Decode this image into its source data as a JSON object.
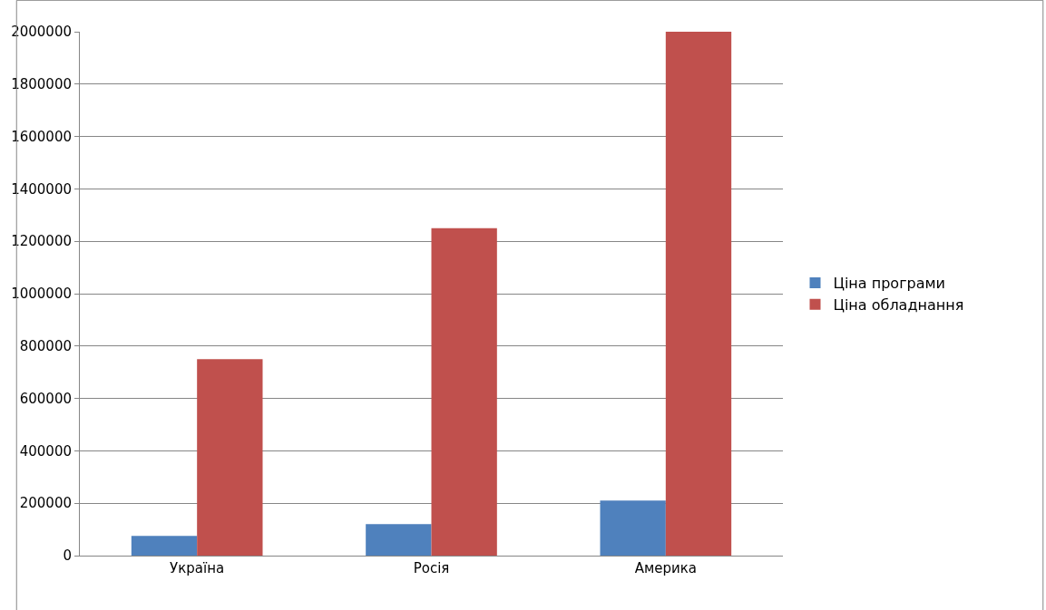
{
  "chart_data": {
    "type": "bar",
    "categories": [
      "Україна",
      "Росія",
      "Америка"
    ],
    "series": [
      {
        "name": "Ціна програми",
        "color": "#4f81bd",
        "values": [
          75000,
          120000,
          210000
        ]
      },
      {
        "name": "Ціна обладнання",
        "color": "#c0504d",
        "values": [
          750000,
          1250000,
          2000000
        ]
      }
    ],
    "ylim": [
      0,
      2000000
    ],
    "yticks": [
      0,
      200000,
      400000,
      600000,
      800000,
      1000000,
      1200000,
      1400000,
      1600000,
      1800000,
      2000000
    ],
    "grid": "y",
    "legend": "right"
  }
}
